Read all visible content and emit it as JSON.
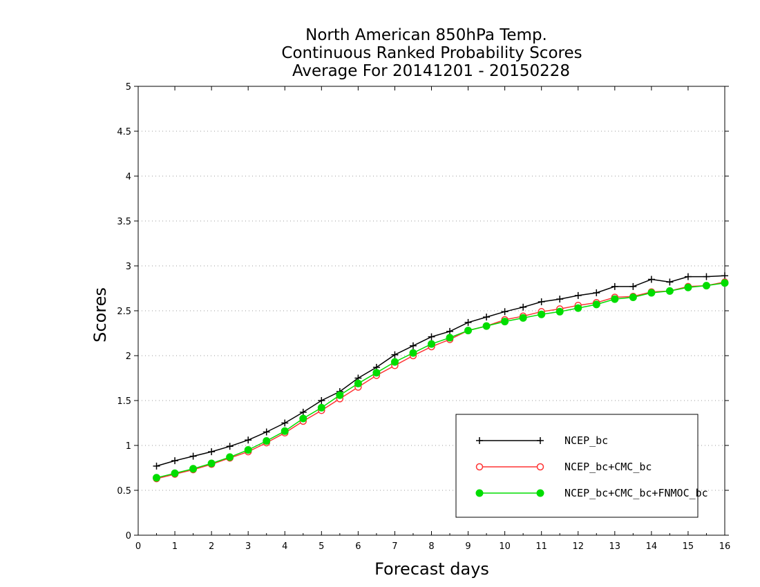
{
  "chart_data": {
    "type": "line",
    "title": [
      "North American 850hPa Temp.",
      "Continuous Ranked Probability Scores",
      "Average For 20141201 - 20150228"
    ],
    "xlabel": "Forecast days",
    "ylabel": "Scores",
    "xlim": [
      0,
      16
    ],
    "ylim": [
      0,
      5
    ],
    "x_ticks": [
      "0",
      "1",
      "2",
      "3",
      "4",
      "5",
      "6",
      "7",
      "8",
      "9",
      "10",
      "11",
      "12",
      "13",
      "14",
      "15",
      "16"
    ],
    "y_ticks": [
      "0",
      "0.5",
      "1",
      "1.5",
      "2",
      "2.5",
      "3",
      "3.5",
      "4",
      "4.5",
      "5"
    ],
    "grid": "horizontal dotted",
    "legend_position": "bottom-right",
    "x": [
      0.5,
      1,
      1.5,
      2,
      2.5,
      3,
      3.5,
      4,
      4.5,
      5,
      5.5,
      6,
      6.5,
      7,
      7.5,
      8,
      8.5,
      9,
      9.5,
      10,
      10.5,
      11,
      11.5,
      12,
      12.5,
      13,
      13.5,
      14,
      14.5,
      15,
      15.5,
      16
    ],
    "series": [
      {
        "name": "NCEP_bc",
        "color": "#000000",
        "marker": "plus",
        "values": [
          0.77,
          0.83,
          0.88,
          0.93,
          0.99,
          1.06,
          1.15,
          1.25,
          1.37,
          1.5,
          1.6,
          1.75,
          1.87,
          2.01,
          2.11,
          2.21,
          2.27,
          2.37,
          2.43,
          2.49,
          2.54,
          2.6,
          2.63,
          2.67,
          2.7,
          2.77,
          2.77,
          2.85,
          2.82,
          2.88,
          2.88,
          2.89
        ]
      },
      {
        "name": "NCEP_bc+CMC_bc",
        "color": "#ff3333",
        "marker": "open-circle",
        "values": [
          0.63,
          0.68,
          0.73,
          0.79,
          0.86,
          0.93,
          1.03,
          1.14,
          1.27,
          1.39,
          1.52,
          1.65,
          1.78,
          1.89,
          2.0,
          2.1,
          2.18,
          2.28,
          2.33,
          2.4,
          2.44,
          2.49,
          2.52,
          2.56,
          2.59,
          2.65,
          2.66,
          2.71,
          2.72,
          2.77,
          2.78,
          2.82
        ]
      },
      {
        "name": "NCEP_bc+CMC_bc+FNMOC_bc",
        "color": "#00dd00",
        "marker": "filled-circle",
        "values": [
          0.64,
          0.69,
          0.74,
          0.8,
          0.87,
          0.95,
          1.05,
          1.16,
          1.3,
          1.42,
          1.56,
          1.69,
          1.81,
          1.93,
          2.03,
          2.13,
          2.2,
          2.28,
          2.33,
          2.38,
          2.42,
          2.46,
          2.49,
          2.53,
          2.57,
          2.63,
          2.65,
          2.7,
          2.72,
          2.76,
          2.78,
          2.81
        ]
      }
    ]
  }
}
